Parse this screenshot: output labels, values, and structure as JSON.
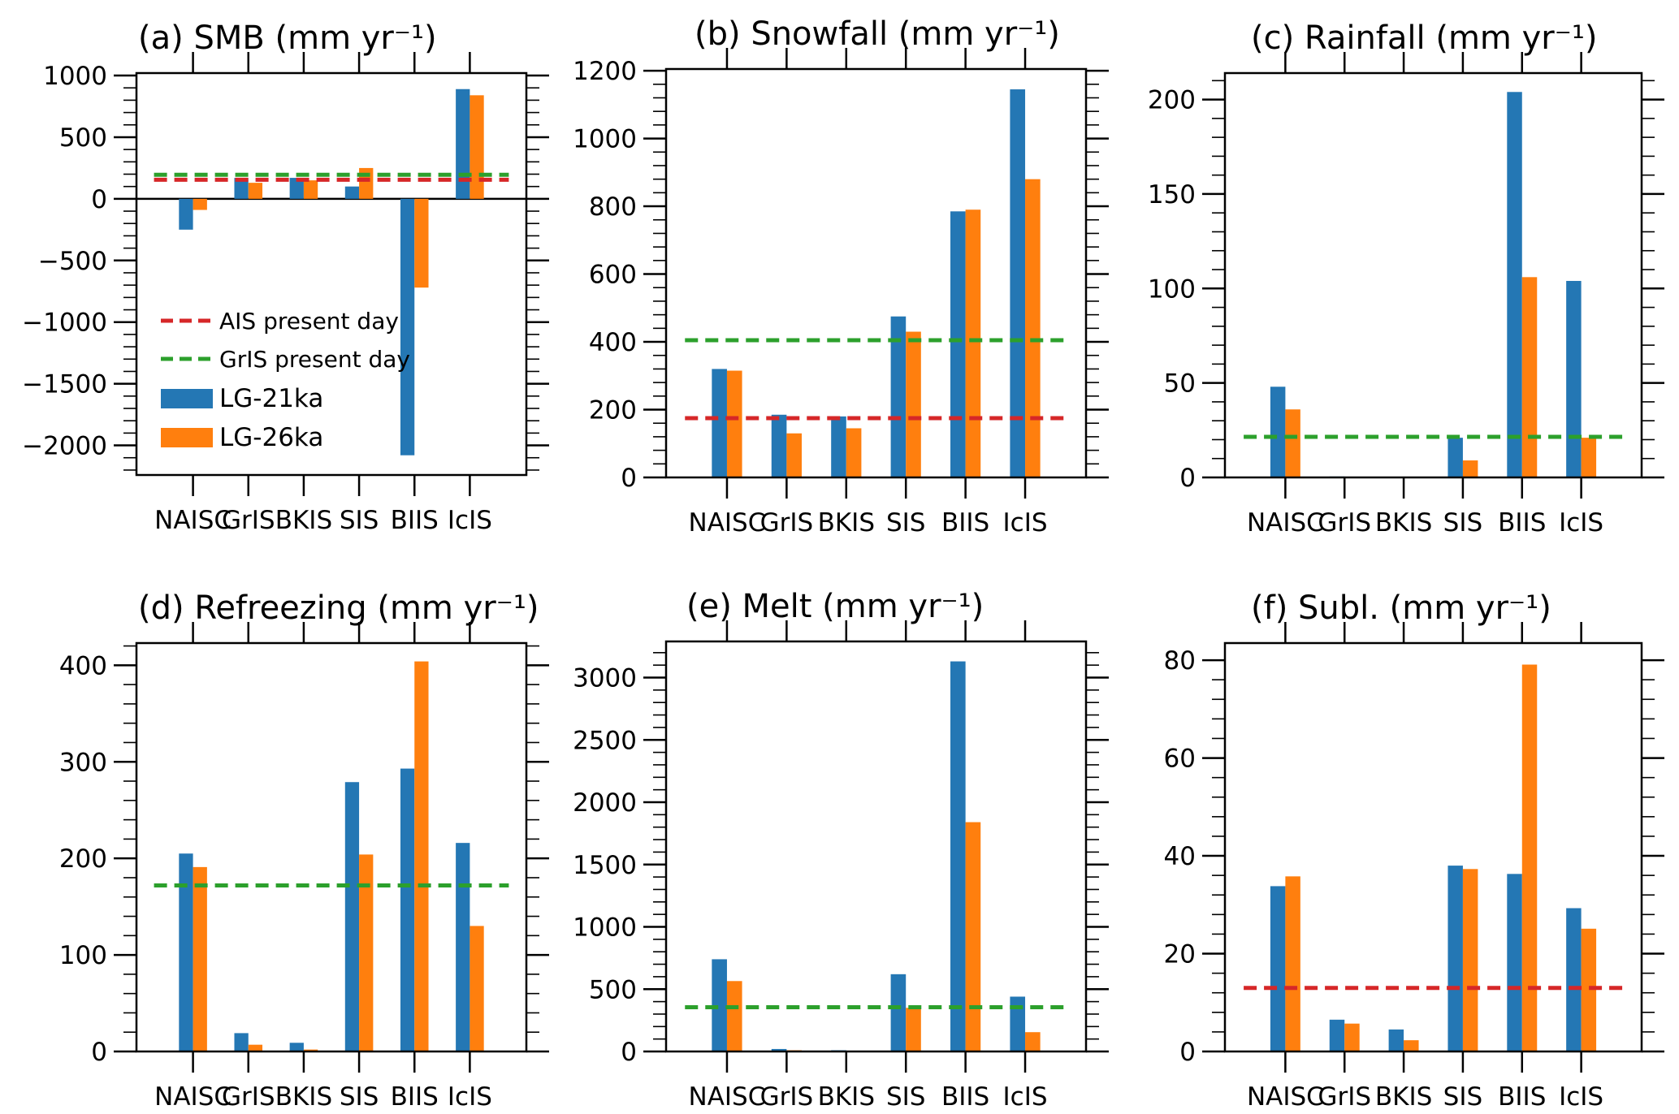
{
  "colors": {
    "lg21": "#2477b4",
    "lg26": "#ff7f0e",
    "ais": "#d62728",
    "gris": "#2ca02c",
    "axis": "#000000"
  },
  "legend": {
    "ais_label": "AIS present day",
    "gris_label": "GrIS present day",
    "lg21_label": "LG-21ka",
    "lg26_label": "LG-26ka"
  },
  "chart_data": [
    {
      "type": "bar",
      "title": "(a) SMB (mm yr⁻¹)",
      "categories": [
        "NAISC",
        "GrIS",
        "BKIS",
        "SIS",
        "BIIS",
        "IcIS"
      ],
      "series": [
        {
          "name": "LG-21ka",
          "values": [
            -250,
            170,
            170,
            100,
            -2080,
            890
          ]
        },
        {
          "name": "LG-26ka",
          "values": [
            -90,
            130,
            150,
            250,
            -720,
            840
          ]
        }
      ],
      "reference_lines": [
        {
          "name": "AIS present day",
          "value": 155
        },
        {
          "name": "GrIS present day",
          "value": 195
        }
      ],
      "ylim": [
        -2240,
        1020
      ],
      "yticks": [
        -2000,
        -1500,
        -1000,
        -500,
        0,
        500,
        1000
      ],
      "ytick_labels": [
        "−2000",
        "−1500",
        "−1000",
        "−500",
        "0",
        "500",
        "1000"
      ],
      "zero_line": true,
      "legend": "inside-lower-left"
    },
    {
      "type": "bar",
      "title": "(b) Snowfall (mm yr⁻¹)",
      "categories": [
        "NAISC",
        "GrIS",
        "BKIS",
        "SIS",
        "BIIS",
        "IcIS"
      ],
      "series": [
        {
          "name": "LG-21ka",
          "values": [
            320,
            185,
            180,
            475,
            785,
            1145
          ]
        },
        {
          "name": "LG-26ka",
          "values": [
            315,
            130,
            145,
            430,
            790,
            880
          ]
        }
      ],
      "reference_lines": [
        {
          "name": "AIS present day",
          "value": 175
        },
        {
          "name": "GrIS present day",
          "value": 405
        }
      ],
      "ylim": [
        0,
        1205
      ],
      "yticks": [
        0,
        200,
        400,
        600,
        800,
        1000,
        1200
      ],
      "ytick_labels": [
        "0",
        "200",
        "400",
        "600",
        "800",
        "1000",
        "1200"
      ]
    },
    {
      "type": "bar",
      "title": "(c) Rainfall (mm yr⁻¹)",
      "categories": [
        "NAISC",
        "GrIS",
        "BKIS",
        "SIS",
        "BIIS",
        "IcIS"
      ],
      "series": [
        {
          "name": "LG-21ka",
          "values": [
            48,
            0.5,
            0,
            21,
            204,
            104
          ]
        },
        {
          "name": "LG-26ka",
          "values": [
            36,
            0.3,
            0,
            9,
            106,
            21
          ]
        }
      ],
      "reference_lines": [
        {
          "name": "GrIS present day",
          "value": 21.5
        }
      ],
      "ylim": [
        0,
        214
      ],
      "yticks": [
        0,
        50,
        100,
        150,
        200
      ],
      "ytick_labels": [
        "0",
        "50",
        "100",
        "150",
        "200"
      ]
    },
    {
      "type": "bar",
      "title": "(d) Refreezing (mm yr⁻¹)",
      "categories": [
        "NAISC",
        "GrIS",
        "BKIS",
        "SIS",
        "BIIS",
        "IcIS"
      ],
      "series": [
        {
          "name": "LG-21ka",
          "values": [
            205,
            19,
            9,
            279,
            293,
            216
          ]
        },
        {
          "name": "LG-26ka",
          "values": [
            191,
            7,
            2,
            204,
            404,
            130
          ]
        }
      ],
      "reference_lines": [
        {
          "name": "GrIS present day",
          "value": 172
        }
      ],
      "ylim": [
        0,
        423
      ],
      "yticks": [
        0,
        100,
        200,
        300,
        400
      ],
      "ytick_labels": [
        "0",
        "100",
        "200",
        "300",
        "400"
      ]
    },
    {
      "type": "bar",
      "title": "(e) Melt (mm yr⁻¹)",
      "categories": [
        "NAISC",
        "GrIS",
        "BKIS",
        "SIS",
        "BIIS",
        "IcIS"
      ],
      "series": [
        {
          "name": "LG-21ka",
          "values": [
            740,
            20,
            10,
            620,
            3130,
            440
          ]
        },
        {
          "name": "LG-26ka",
          "values": [
            565,
            10,
            5,
            350,
            1840,
            155
          ]
        }
      ],
      "reference_lines": [
        {
          "name": "GrIS present day",
          "value": 355
        }
      ],
      "ylim": [
        0,
        3290
      ],
      "yticks": [
        0,
        500,
        1000,
        1500,
        2000,
        2500,
        3000
      ],
      "ytick_labels": [
        "0",
        "500",
        "1000",
        "1500",
        "2000",
        "2500",
        "3000"
      ]
    },
    {
      "type": "bar",
      "title": "(f) Subl. (mm yr⁻¹)",
      "categories": [
        "NAISC",
        "GrIS",
        "BKIS",
        "SIS",
        "BIIS",
        "IcIS"
      ],
      "series": [
        {
          "name": "LG-21ka",
          "values": [
            33.8,
            6.5,
            4.5,
            38,
            36.3,
            29.3
          ]
        },
        {
          "name": "LG-26ka",
          "values": [
            35.8,
            5.7,
            2.3,
            37.3,
            79.1,
            25.1
          ]
        }
      ],
      "reference_lines": [
        {
          "name": "AIS present day",
          "value": 13
        }
      ],
      "ylim": [
        0,
        83.5
      ],
      "yticks": [
        0,
        20,
        40,
        60,
        80
      ],
      "ytick_labels": [
        "0",
        "20",
        "40",
        "60",
        "80"
      ]
    }
  ]
}
